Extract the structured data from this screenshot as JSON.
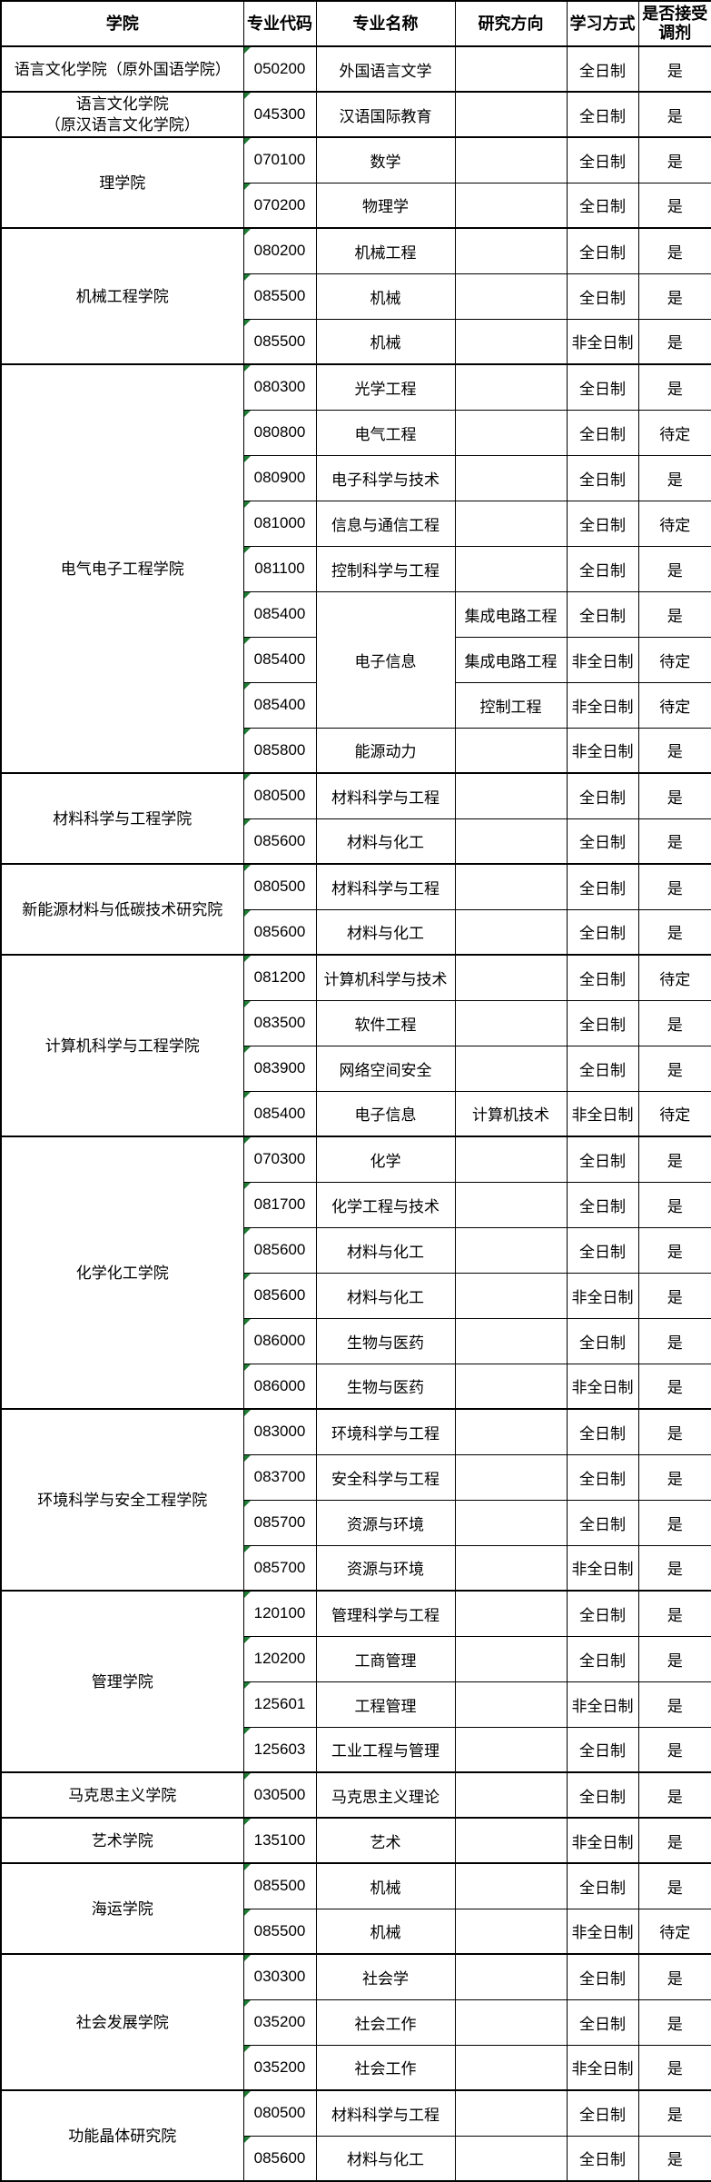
{
  "colors": {
    "border": "#000000",
    "text": "#000000",
    "marker_green": "#1e7e34",
    "background": "#ffffff"
  },
  "table": {
    "columns": [
      "学院",
      "专业代码",
      "专业名称",
      "研究方向",
      "学习方式",
      "是否接受调剂"
    ],
    "groups": [
      {
        "college": "语言文化学院（原外国语学院）",
        "rows": [
          {
            "code": "050200",
            "name": "外国语言文学",
            "direction": "",
            "mode": "全日制",
            "accept": "是"
          }
        ]
      },
      {
        "college": "语言文化学院\n（原汉语言文化学院）",
        "rows": [
          {
            "code": "045300",
            "name": "汉语国际教育",
            "direction": "",
            "mode": "全日制",
            "accept": "是"
          }
        ]
      },
      {
        "college": "理学院",
        "rows": [
          {
            "code": "070100",
            "name": "数学",
            "direction": "",
            "mode": "全日制",
            "accept": "是"
          },
          {
            "code": "070200",
            "name": "物理学",
            "direction": "",
            "mode": "全日制",
            "accept": "是"
          }
        ]
      },
      {
        "college": "机械工程学院",
        "rows": [
          {
            "code": "080200",
            "name": "机械工程",
            "direction": "",
            "mode": "全日制",
            "accept": "是"
          },
          {
            "code": "085500",
            "name": "机械",
            "direction": "",
            "mode": "全日制",
            "accept": "是"
          },
          {
            "code": "085500",
            "name": "机械",
            "direction": "",
            "mode": "非全日制",
            "accept": "是"
          }
        ]
      },
      {
        "college": "电气电子工程学院",
        "rows": [
          {
            "code": "080300",
            "name": "光学工程",
            "direction": "",
            "mode": "全日制",
            "accept": "是"
          },
          {
            "code": "080800",
            "name": "电气工程",
            "direction": "",
            "mode": "全日制",
            "accept": "待定"
          },
          {
            "code": "080900",
            "name": "电子科学与技术",
            "direction": "",
            "mode": "全日制",
            "accept": "是"
          },
          {
            "code": "081000",
            "name": "信息与通信工程",
            "direction": "",
            "mode": "全日制",
            "accept": "待定"
          },
          {
            "code": "081100",
            "name": "控制科学与工程",
            "direction": "",
            "mode": "全日制",
            "accept": "是"
          },
          {
            "code": "085400",
            "name": "电子信息",
            "name_span": 3,
            "direction": "集成电路工程",
            "mode": "全日制",
            "accept": "是"
          },
          {
            "code": "085400",
            "name": null,
            "direction": "集成电路工程",
            "mode": "非全日制",
            "accept": "待定"
          },
          {
            "code": "085400",
            "name": null,
            "direction": "控制工程",
            "mode": "非全日制",
            "accept": "待定"
          },
          {
            "code": "085800",
            "name": "能源动力",
            "direction": "",
            "mode": "非全日制",
            "accept": "是"
          }
        ]
      },
      {
        "college": "材料科学与工程学院",
        "rows": [
          {
            "code": "080500",
            "name": "材料科学与工程",
            "direction": "",
            "mode": "全日制",
            "accept": "是"
          },
          {
            "code": "085600",
            "name": "材料与化工",
            "direction": "",
            "mode": "全日制",
            "accept": "是"
          }
        ]
      },
      {
        "college": "新能源材料与低碳技术研究院",
        "rows": [
          {
            "code": "080500",
            "name": "材料科学与工程",
            "direction": "",
            "mode": "全日制",
            "accept": "是"
          },
          {
            "code": "085600",
            "name": "材料与化工",
            "direction": "",
            "mode": "全日制",
            "accept": "是"
          }
        ]
      },
      {
        "college": "计算机科学与工程学院",
        "rows": [
          {
            "code": "081200",
            "name": "计算机科学与技术",
            "direction": "",
            "mode": "全日制",
            "accept": "待定"
          },
          {
            "code": "083500",
            "name": "软件工程",
            "direction": "",
            "mode": "全日制",
            "accept": "是"
          },
          {
            "code": "083900",
            "name": "网络空间安全",
            "direction": "",
            "mode": "全日制",
            "accept": "是"
          },
          {
            "code": "085400",
            "name": "电子信息",
            "direction": "计算机技术",
            "mode": "非全日制",
            "accept": "待定"
          }
        ]
      },
      {
        "college": "化学化工学院",
        "rows": [
          {
            "code": "070300",
            "name": "化学",
            "direction": "",
            "mode": "全日制",
            "accept": "是"
          },
          {
            "code": "081700",
            "name": "化学工程与技术",
            "direction": "",
            "mode": "全日制",
            "accept": "是"
          },
          {
            "code": "085600",
            "name": "材料与化工",
            "direction": "",
            "mode": "全日制",
            "accept": "是"
          },
          {
            "code": "085600",
            "name": "材料与化工",
            "direction": "",
            "mode": "非全日制",
            "accept": "是"
          },
          {
            "code": "086000",
            "name": "生物与医药",
            "direction": "",
            "mode": "全日制",
            "accept": "是"
          },
          {
            "code": "086000",
            "name": "生物与医药",
            "direction": "",
            "mode": "非全日制",
            "accept": "是"
          }
        ]
      },
      {
        "college": "环境科学与安全工程学院",
        "rows": [
          {
            "code": "083000",
            "name": "环境科学与工程",
            "direction": "",
            "mode": "全日制",
            "accept": "是"
          },
          {
            "code": "083700",
            "name": "安全科学与工程",
            "direction": "",
            "mode": "全日制",
            "accept": "是"
          },
          {
            "code": "085700",
            "name": "资源与环境",
            "direction": "",
            "mode": "全日制",
            "accept": "是"
          },
          {
            "code": "085700",
            "name": "资源与环境",
            "direction": "",
            "mode": "非全日制",
            "accept": "是"
          }
        ]
      },
      {
        "college": "管理学院",
        "rows": [
          {
            "code": "120100",
            "name": "管理科学与工程",
            "direction": "",
            "mode": "全日制",
            "accept": "是"
          },
          {
            "code": "120200",
            "name": "工商管理",
            "direction": "",
            "mode": "全日制",
            "accept": "是"
          },
          {
            "code": "125601",
            "name": "工程管理",
            "direction": "",
            "mode": "非全日制",
            "accept": "是"
          },
          {
            "code": "125603",
            "name": "工业工程与管理",
            "direction": "",
            "mode": "全日制",
            "accept": "是"
          }
        ]
      },
      {
        "college": "马克思主义学院",
        "rows": [
          {
            "code": "030500",
            "name": "马克思主义理论",
            "direction": "",
            "mode": "全日制",
            "accept": "是"
          }
        ]
      },
      {
        "college": "艺术学院",
        "rows": [
          {
            "code": "135100",
            "name": "艺术",
            "direction": "",
            "mode": "非全日制",
            "accept": "是"
          }
        ]
      },
      {
        "college": "海运学院",
        "rows": [
          {
            "code": "085500",
            "name": "机械",
            "direction": "",
            "mode": "全日制",
            "accept": "是"
          },
          {
            "code": "085500",
            "name": "机械",
            "direction": "",
            "mode": "非全日制",
            "accept": "待定"
          }
        ]
      },
      {
        "college": "社会发展学院",
        "rows": [
          {
            "code": "030300",
            "name": "社会学",
            "direction": "",
            "mode": "全日制",
            "accept": "是"
          },
          {
            "code": "035200",
            "name": "社会工作",
            "direction": "",
            "mode": "全日制",
            "accept": "是"
          },
          {
            "code": "035200",
            "name": "社会工作",
            "direction": "",
            "mode": "非全日制",
            "accept": "是"
          }
        ]
      },
      {
        "college": "功能晶体研究院",
        "rows": [
          {
            "code": "080500",
            "name": "材料科学与工程",
            "direction": "",
            "mode": "全日制",
            "accept": "是"
          },
          {
            "code": "085600",
            "name": "材料与化工",
            "direction": "",
            "mode": "全日制",
            "accept": "是"
          }
        ]
      }
    ]
  }
}
